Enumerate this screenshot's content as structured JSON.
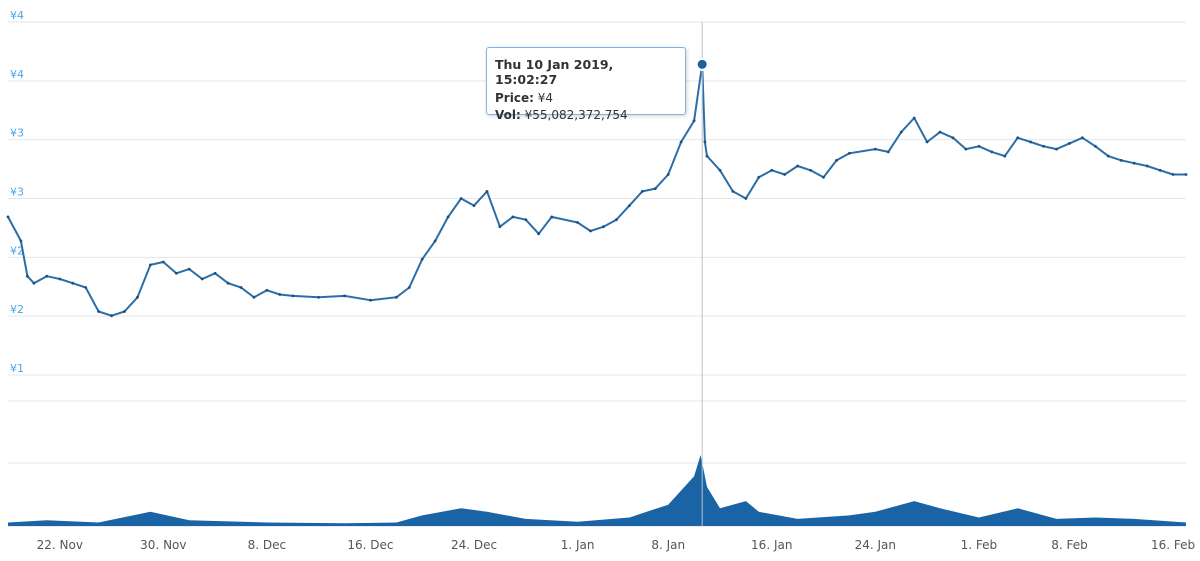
{
  "chart_data": {
    "type": "line",
    "price_y_ticks": [
      "¥4",
      "¥4",
      "¥3",
      "¥3",
      "¥2",
      "¥2",
      "¥1"
    ],
    "x_tick_labels": [
      "22. Nov",
      "30. Nov",
      "8. Dec",
      "16. Dec",
      "24. Dec",
      "1. Jan",
      "8. Jan",
      "16. Jan",
      "24. Jan",
      "1. Feb",
      "8. Feb",
      "16. Feb"
    ],
    "x_range": [
      "2018-11-18",
      "2019-02-17"
    ],
    "price_range": [
      1.5,
      4.0
    ],
    "colors": {
      "line": "#2c6ea8",
      "volume": "#1a64a6",
      "axis_label": "#4aa7e8",
      "tooltip_border": "#7cb5ec"
    },
    "series": [
      {
        "kind": "price",
        "points": [
          [
            "2018-11-18",
            2.62
          ],
          [
            "2018-11-19",
            2.45
          ],
          [
            "2018-11-19T12",
            2.2
          ],
          [
            "2018-11-20",
            2.15
          ],
          [
            "2018-11-21",
            2.2
          ],
          [
            "2018-11-22",
            2.18
          ],
          [
            "2018-11-23",
            2.15
          ],
          [
            "2018-11-24",
            2.12
          ],
          [
            "2018-11-25",
            1.95
          ],
          [
            "2018-11-26",
            1.92
          ],
          [
            "2018-11-27",
            1.95
          ],
          [
            "2018-11-28",
            2.05
          ],
          [
            "2018-11-29",
            2.28
          ],
          [
            "2018-11-30",
            2.3
          ],
          [
            "2018-12-01",
            2.22
          ],
          [
            "2018-12-02",
            2.25
          ],
          [
            "2018-12-03",
            2.18
          ],
          [
            "2018-12-04",
            2.22
          ],
          [
            "2018-12-05",
            2.15
          ],
          [
            "2018-12-06",
            2.12
          ],
          [
            "2018-12-07",
            2.05
          ],
          [
            "2018-12-08",
            2.1
          ],
          [
            "2018-12-09",
            2.07
          ],
          [
            "2018-12-10",
            2.06
          ],
          [
            "2018-12-12",
            2.05
          ],
          [
            "2018-12-14",
            2.06
          ],
          [
            "2018-12-16",
            2.03
          ],
          [
            "2018-12-18",
            2.05
          ],
          [
            "2018-12-19",
            2.12
          ],
          [
            "2018-12-20",
            2.32
          ],
          [
            "2018-12-21",
            2.45
          ],
          [
            "2018-12-22",
            2.62
          ],
          [
            "2018-12-23",
            2.75
          ],
          [
            "2018-12-24",
            2.7
          ],
          [
            "2018-12-25",
            2.8
          ],
          [
            "2018-12-26",
            2.55
          ],
          [
            "2018-12-27",
            2.62
          ],
          [
            "2018-12-28",
            2.6
          ],
          [
            "2018-12-29",
            2.5
          ],
          [
            "2018-12-30",
            2.62
          ],
          [
            "2019-01-01",
            2.58
          ],
          [
            "2019-01-02",
            2.52
          ],
          [
            "2019-01-03",
            2.55
          ],
          [
            "2019-01-04",
            2.6
          ],
          [
            "2019-01-05",
            2.7
          ],
          [
            "2019-01-06",
            2.8
          ],
          [
            "2019-01-07",
            2.82
          ],
          [
            "2019-01-08",
            2.92
          ],
          [
            "2019-01-09",
            3.15
          ],
          [
            "2019-01-10",
            3.3
          ],
          [
            "2019-01-10T15",
            3.7
          ],
          [
            "2019-01-10T20",
            3.15
          ],
          [
            "2019-01-11",
            3.05
          ],
          [
            "2019-01-12",
            2.95
          ],
          [
            "2019-01-13",
            2.8
          ],
          [
            "2019-01-14",
            2.75
          ],
          [
            "2019-01-15",
            2.9
          ],
          [
            "2019-01-16",
            2.95
          ],
          [
            "2019-01-17",
            2.92
          ],
          [
            "2019-01-18",
            2.98
          ],
          [
            "2019-01-19",
            2.95
          ],
          [
            "2019-01-20",
            2.9
          ],
          [
            "2019-01-21",
            3.02
          ],
          [
            "2019-01-22",
            3.07
          ],
          [
            "2019-01-24",
            3.1
          ],
          [
            "2019-01-25",
            3.08
          ],
          [
            "2019-01-26",
            3.22
          ],
          [
            "2019-01-27",
            3.32
          ],
          [
            "2019-01-28",
            3.15
          ],
          [
            "2019-01-29",
            3.22
          ],
          [
            "2019-01-30",
            3.18
          ],
          [
            "2019-01-31",
            3.1
          ],
          [
            "2019-02-01",
            3.12
          ],
          [
            "2019-02-02",
            3.08
          ],
          [
            "2019-02-03",
            3.05
          ],
          [
            "2019-02-04",
            3.18
          ],
          [
            "2019-02-05",
            3.15
          ],
          [
            "2019-02-06",
            3.12
          ],
          [
            "2019-02-07",
            3.1
          ],
          [
            "2019-02-08",
            3.14
          ],
          [
            "2019-02-09",
            3.18
          ],
          [
            "2019-02-10",
            3.12
          ],
          [
            "2019-02-11",
            3.05
          ],
          [
            "2019-02-12",
            3.02
          ],
          [
            "2019-02-13",
            3.0
          ],
          [
            "2019-02-14",
            2.98
          ],
          [
            "2019-02-15",
            2.95
          ],
          [
            "2019-02-16",
            2.92
          ],
          [
            "2019-02-17",
            2.92
          ]
        ]
      },
      {
        "kind": "volume",
        "values_relative_to_peak": [
          [
            "2018-11-18",
            0.05
          ],
          [
            "2018-11-21",
            0.08
          ],
          [
            "2018-11-25",
            0.05
          ],
          [
            "2018-11-29",
            0.2
          ],
          [
            "2018-12-02",
            0.08
          ],
          [
            "2018-12-08",
            0.05
          ],
          [
            "2018-12-14",
            0.04
          ],
          [
            "2018-12-18",
            0.05
          ],
          [
            "2018-12-20",
            0.15
          ],
          [
            "2018-12-23",
            0.25
          ],
          [
            "2018-12-25",
            0.2
          ],
          [
            "2018-12-28",
            0.1
          ],
          [
            "2019-01-01",
            0.06
          ],
          [
            "2019-01-05",
            0.12
          ],
          [
            "2019-01-08",
            0.3
          ],
          [
            "2019-01-10",
            0.7
          ],
          [
            "2019-01-10T12",
            1.0
          ],
          [
            "2019-01-11",
            0.55
          ],
          [
            "2019-01-12",
            0.25
          ],
          [
            "2019-01-14",
            0.35
          ],
          [
            "2019-01-15",
            0.2
          ],
          [
            "2019-01-18",
            0.1
          ],
          [
            "2019-01-22",
            0.15
          ],
          [
            "2019-01-24",
            0.2
          ],
          [
            "2019-01-27",
            0.35
          ],
          [
            "2019-01-29",
            0.25
          ],
          [
            "2019-02-01",
            0.12
          ],
          [
            "2019-02-04",
            0.25
          ],
          [
            "2019-02-07",
            0.1
          ],
          [
            "2019-02-10",
            0.12
          ],
          [
            "2019-02-13",
            0.1
          ],
          [
            "2019-02-17",
            0.05
          ]
        ]
      }
    ],
    "crosshair_x": "2019-01-10T15"
  },
  "tooltip": {
    "date": "Thu 10 Jan 2019, 15:02:27",
    "price_label": "Price:",
    "price_value": "¥4",
    "vol_label": "Vol:",
    "vol_value": "¥55,082,372,754"
  }
}
